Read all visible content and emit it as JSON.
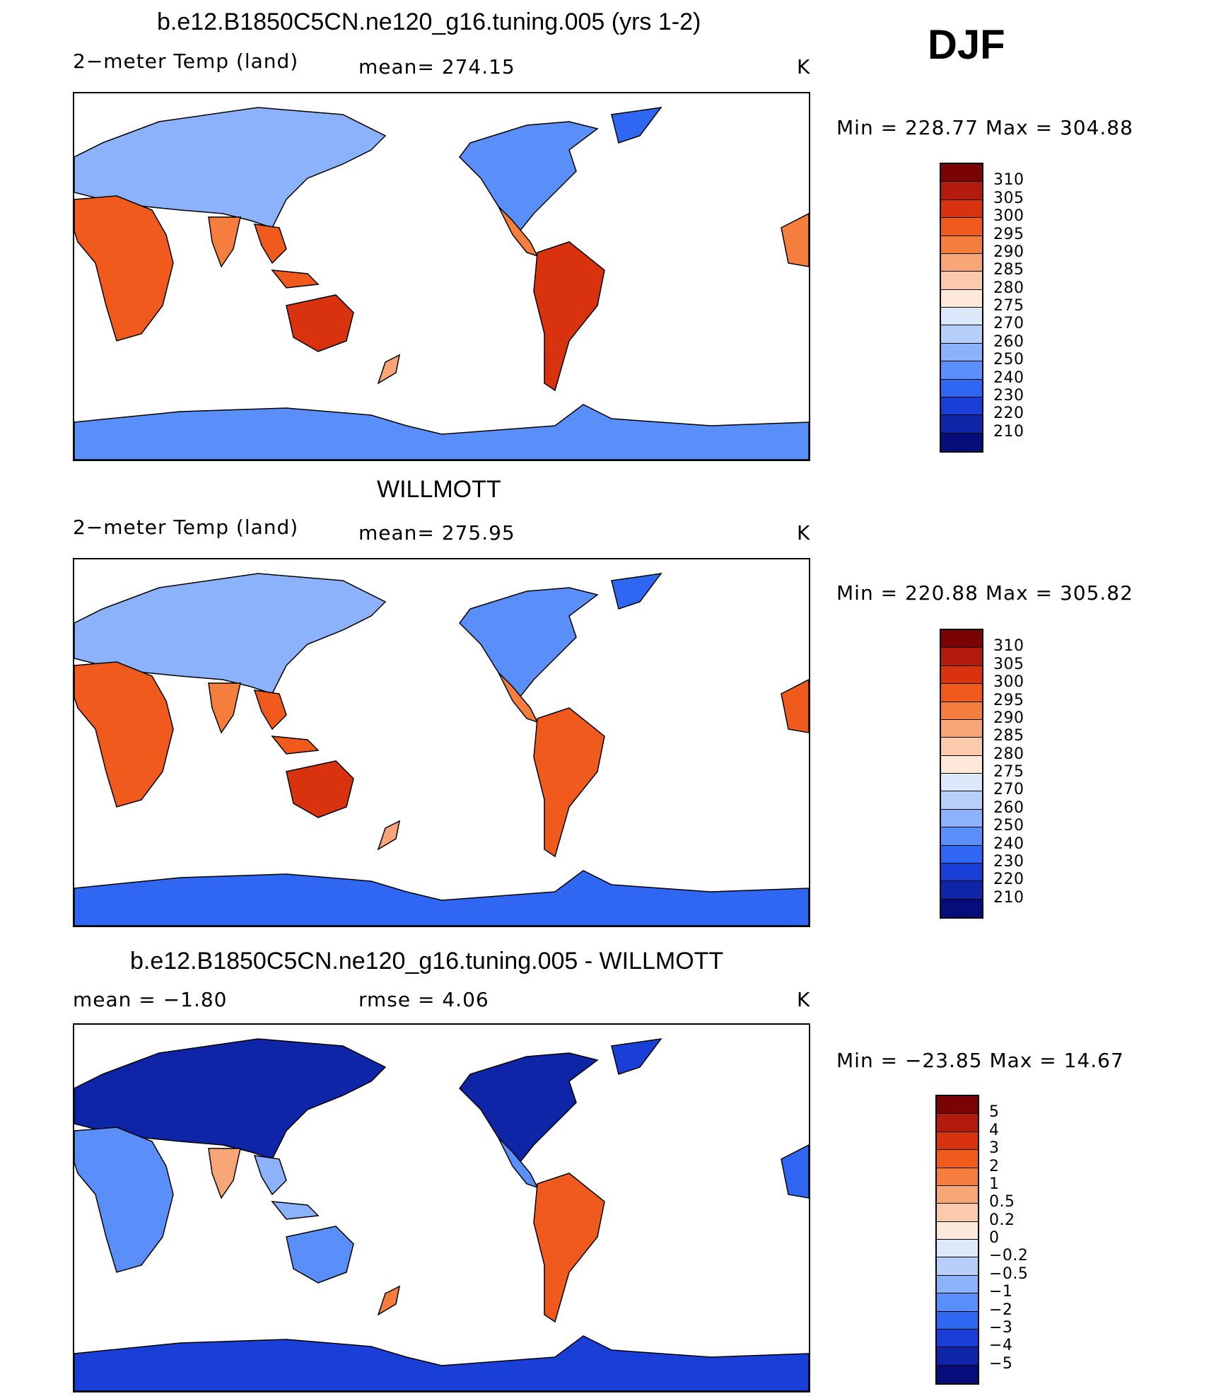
{
  "header": {
    "season": "DJF"
  },
  "panels": [
    {
      "id": "model",
      "title": "b.e12.B1850C5CN.ne120_g16.tuning.005 (yrs 1-2)",
      "left_label": "2−meter Temp (land)",
      "mid_label": "mean= 274.15",
      "units": "K",
      "minmax": "Min = 228.77 Max = 304.88",
      "colorbar": [
        "310",
        "305",
        "300",
        "295",
        "290",
        "285",
        "280",
        "275",
        "270",
        "260",
        "250",
        "240",
        "230",
        "220",
        "210"
      ]
    },
    {
      "id": "obs",
      "title": "WILLMOTT",
      "left_label": "2−meter Temp (land)",
      "mid_label": "mean= 275.95",
      "units": "K",
      "minmax": "Min = 220.88 Max = 305.82",
      "colorbar": [
        "310",
        "305",
        "300",
        "295",
        "290",
        "285",
        "280",
        "275",
        "270",
        "260",
        "250",
        "240",
        "230",
        "220",
        "210"
      ]
    },
    {
      "id": "diff",
      "title": "b.e12.B1850C5CN.ne120_g16.tuning.005 - WILLMOTT",
      "left_label": "mean =  −1.80",
      "mid_label": "rmse =   4.06",
      "units": "K",
      "minmax": "Min = −23.85 Max =  14.67",
      "colorbar": [
        "5",
        "4",
        "3",
        "2",
        "1",
        "0.5",
        "0.2",
        "0",
        "−0.2",
        "−0.5",
        "−1",
        "−2",
        "−3",
        "−4",
        "−5"
      ]
    }
  ],
  "colors": {
    "scale": [
      "#7a0403",
      "#b31b0c",
      "#d9320f",
      "#f05a1c",
      "#f57d3d",
      "#f8a678",
      "#fbc9ac",
      "#fde9da",
      "#dbe9fb",
      "#b7cffb",
      "#8bb2fb",
      "#5a8ef8",
      "#2f66f2",
      "#1a3fd6",
      "#0f25a8",
      "#060d7a"
    ]
  }
}
